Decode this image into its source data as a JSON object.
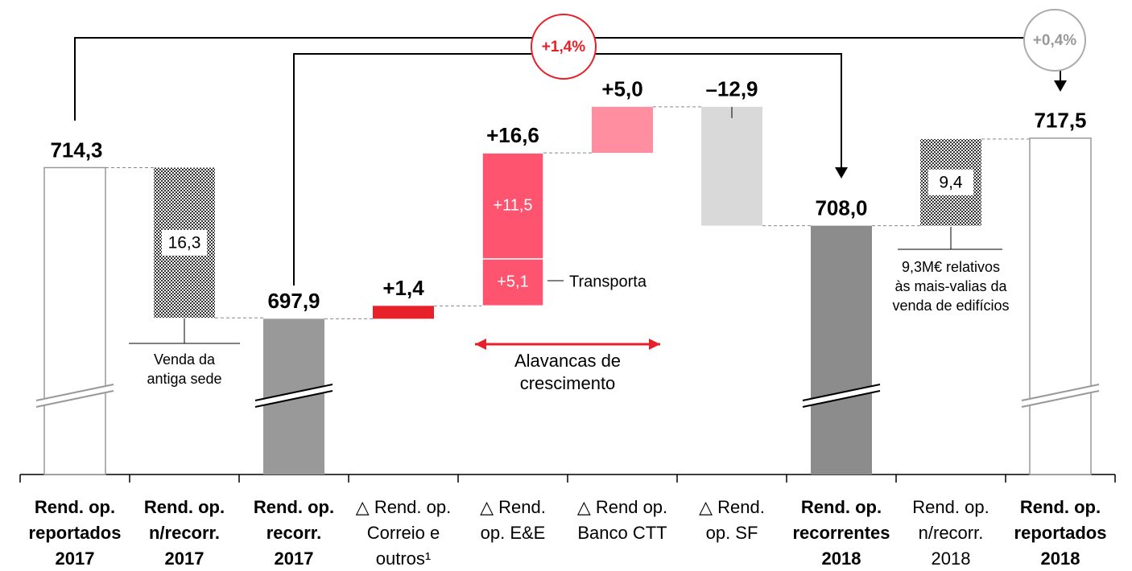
{
  "chart_data": {
    "type": "waterfall",
    "categories": [
      "Rend. op.\nreportados\n2017",
      "Rend. op.\nn/recorr.\n2017",
      "Rend. op.\nrecorr.\n2017",
      "△ Rend. op.\nCorreio e\noutros¹",
      "△ Rend.\nop. E&E",
      "△ Rend op.\nBanco CTT",
      "△ Rend.\nop. SF",
      "Rend. op.\nrecorrentes\n2018",
      "Rend. op.\nn/recorr.\n2018",
      "Rend. op.\nreportados\n2018"
    ],
    "bold": [
      true,
      true,
      true,
      false,
      false,
      false,
      false,
      true,
      false,
      true
    ],
    "kinds": [
      "total",
      "delta",
      "total",
      "delta",
      "delta",
      "delta",
      "delta",
      "total",
      "delta",
      "total"
    ],
    "values": [
      714.3,
      -16.3,
      697.9,
      1.4,
      16.6,
      5.0,
      -12.9,
      708.0,
      9.4,
      717.5
    ],
    "value_labels": [
      "714,3",
      "16,3",
      "697,9",
      "+1,4",
      "+16,6",
      "+5,0",
      "–12,9",
      "708,0",
      "9,4",
      "717,5"
    ],
    "colors": [
      "#ffffff",
      "hatch",
      "#999999",
      "#e8202a",
      "#ff5470",
      "#ff8fa0",
      "#d9d9d9",
      "#8c8c8c",
      "hatch",
      "#ffffff"
    ],
    "segments": [
      {
        "value": 5.1,
        "label": "+5,1",
        "name": "Transporta"
      },
      {
        "value": 11.5,
        "label": "+11,5"
      }
    ],
    "ylim": [
      681,
      729
    ],
    "annotations": {
      "growth_recurring": "+1,4%",
      "growth_reported": "+0,4%",
      "old_hq": "Venda da\nantiga sede",
      "buildings": "9,3M€ relativos\nàs mais-valias da\nvenda de edifícios",
      "levers": "Alavancas de\ncrescimento"
    }
  }
}
